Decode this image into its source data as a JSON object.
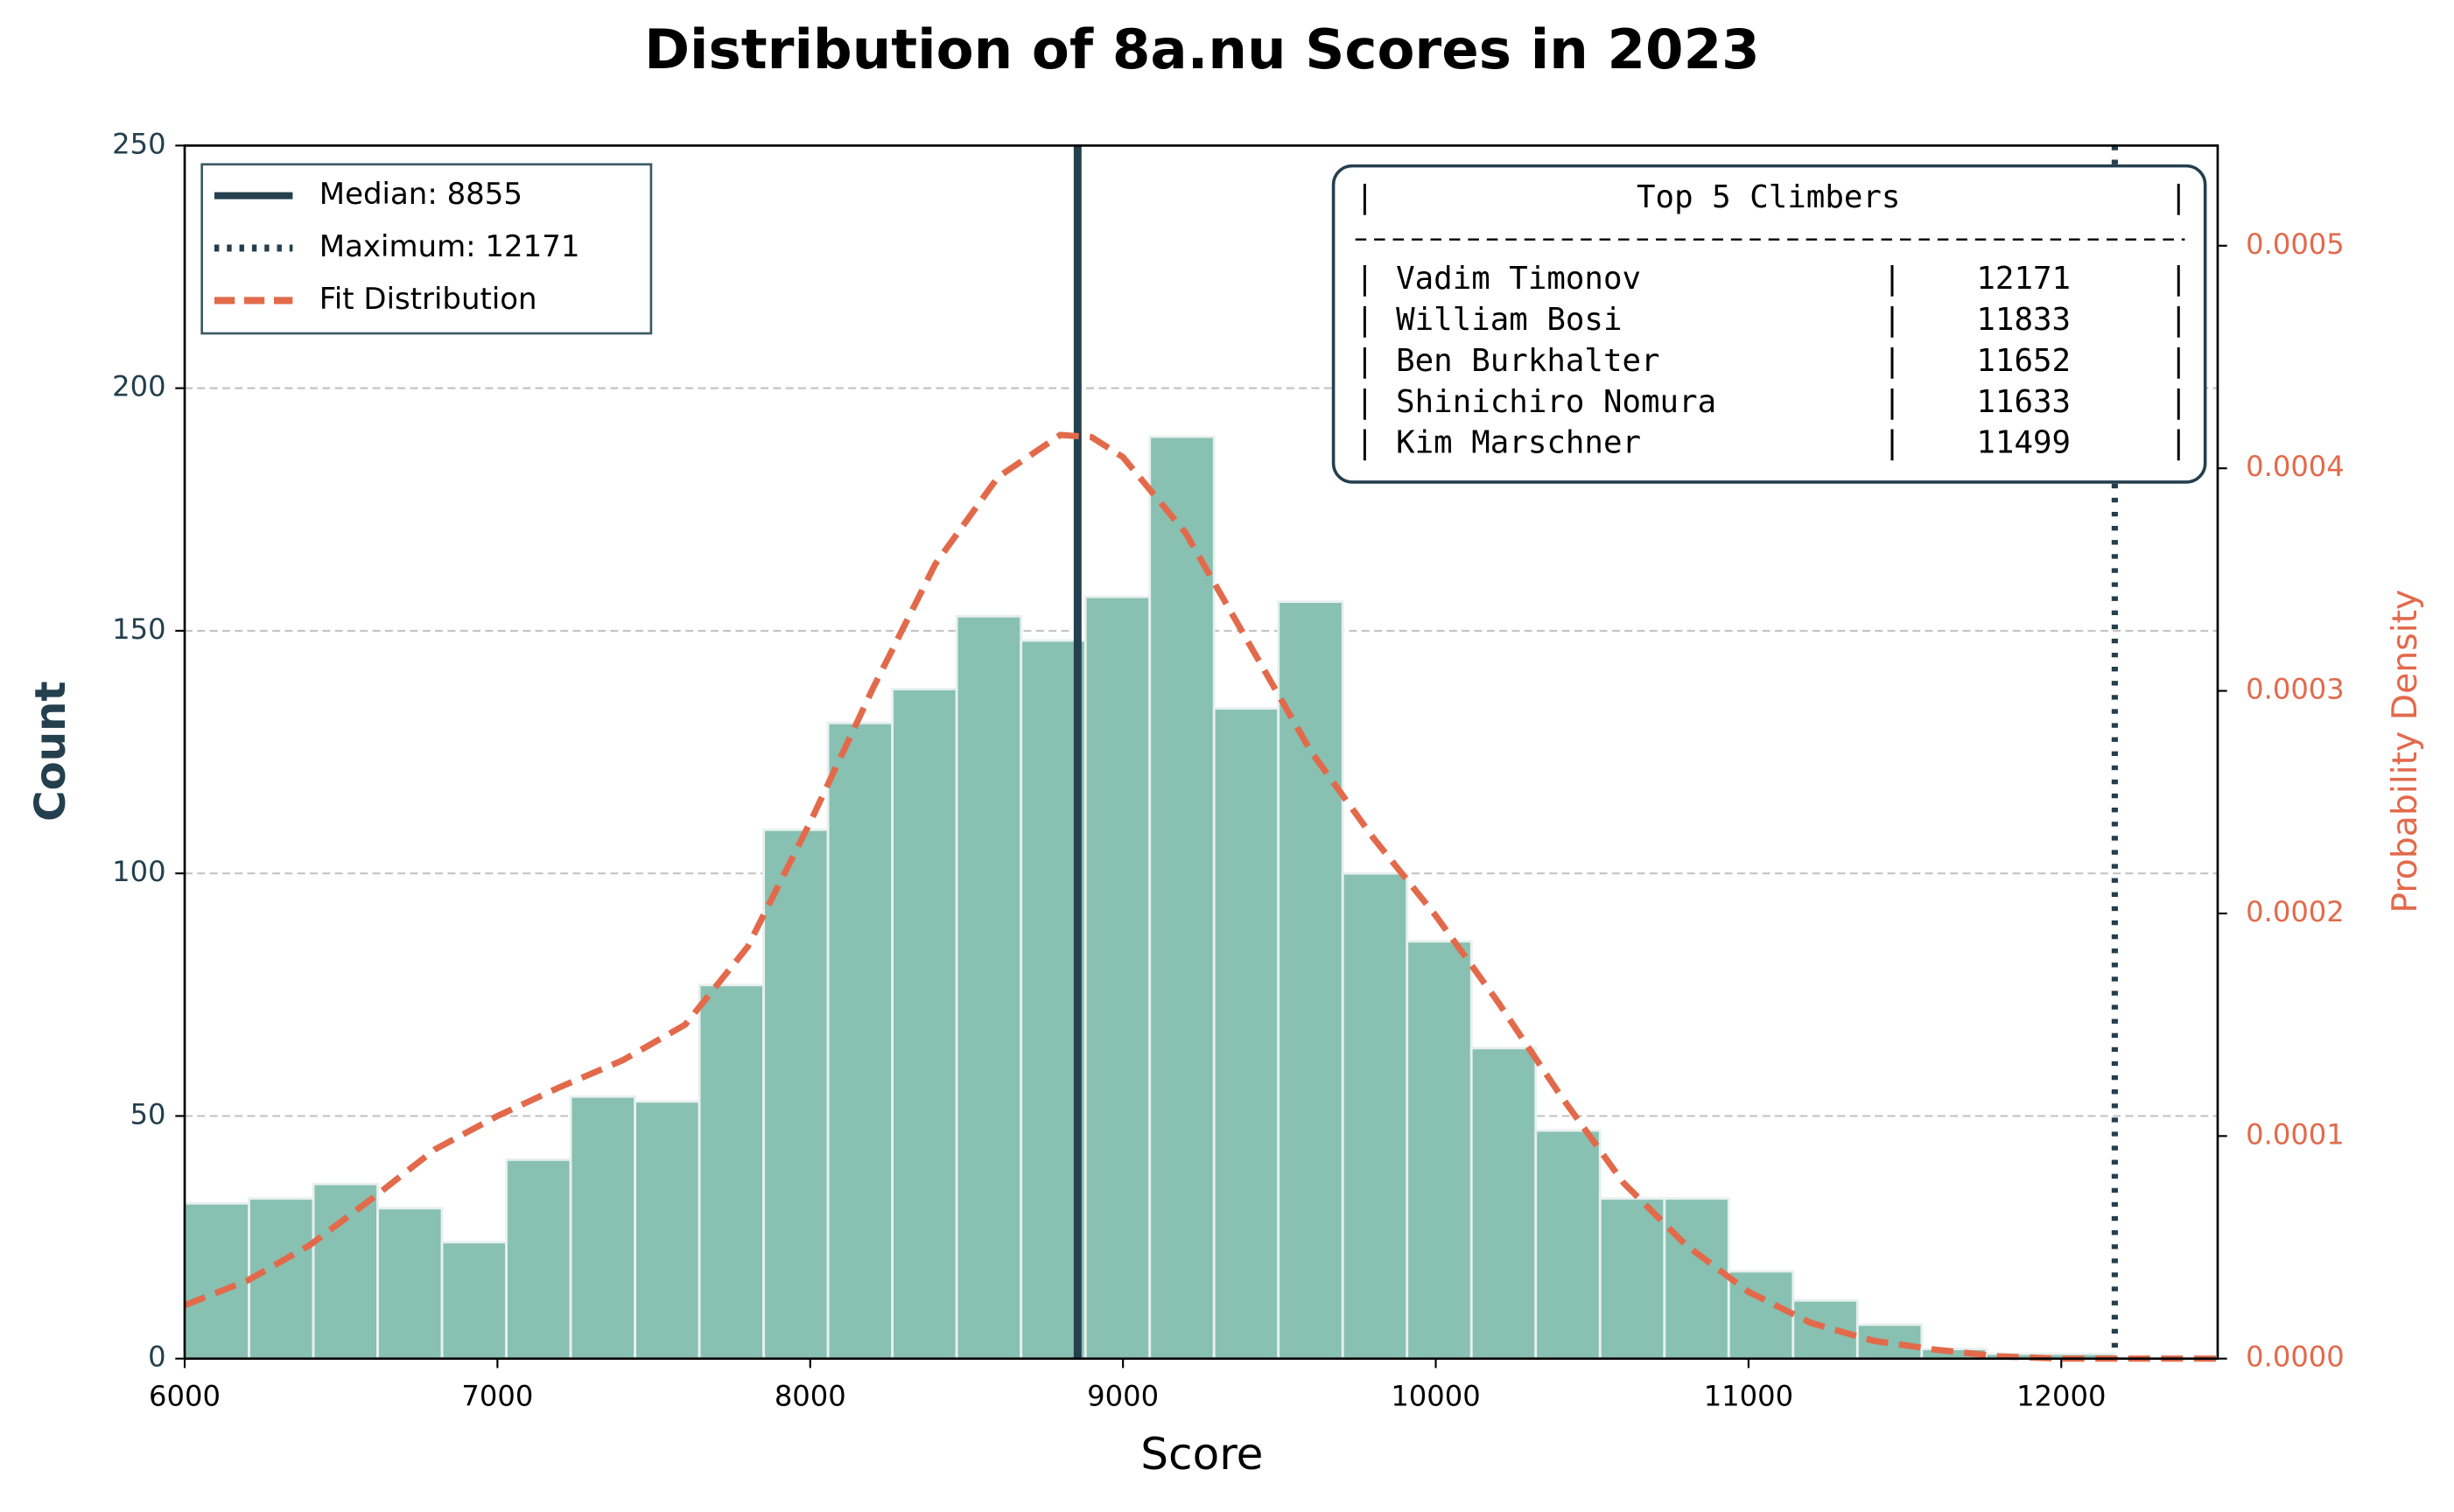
{
  "chart_data": {
    "type": "histogram",
    "title": "Distribution of 8a.nu Scores in 2023",
    "xlabel": "Score",
    "ylabel": "Count",
    "y2label": "Probability Density",
    "bins": [
      6000,
      6205.7,
      6411.4,
      6617.1,
      6822.8,
      7028.5,
      7234.2,
      7439.9,
      7645.6,
      7851.3,
      8057,
      8262.7,
      8468.4,
      8674.1,
      8879.8,
      9085.5,
      9291.2,
      9496.9,
      9702.6,
      9908.3,
      10114,
      10319.7,
      10525.4,
      10731.1,
      10936.8,
      11142.5,
      11348.2,
      11553.9,
      11759.6,
      11965.3,
      12171
    ],
    "values": [
      32,
      33,
      36,
      31,
      24,
      41,
      54,
      53,
      77,
      109,
      131,
      138,
      153,
      148,
      157,
      190,
      134,
      156,
      100,
      86,
      64,
      47,
      33,
      33,
      18,
      12,
      7,
      2,
      1,
      1
    ],
    "color": "#88c0b2",
    "xlim": [
      6000,
      12500
    ],
    "xticks": [
      6000,
      7000,
      8000,
      9000,
      10000,
      11000,
      12000
    ],
    "ylim": [
      0,
      250
    ],
    "yticks": [
      0,
      50,
      100,
      150,
      200,
      250
    ],
    "y2lim": [
      0,
      0.000545
    ],
    "y2ticks": [
      {
        "value": 0,
        "label": "0.0000"
      },
      0.0001,
      0.0002,
      0.0003,
      0.0004,
      0.0005
    ],
    "grid": true,
    "legend": "upper left",
    "lines": [
      {
        "name": "Median: 8855",
        "value": 8855,
        "color": "#243f4e",
        "style": "solid"
      },
      {
        "name": "Maximum: 12171",
        "value": 12171,
        "color": "#243f4e",
        "style": "dotted"
      }
    ],
    "fit": {
      "name": "Fit Distribution",
      "color": "#e26a4b",
      "style": "dashed",
      "axis": "y2",
      "x": [
        6000,
        6200,
        6400,
        6600,
        6800,
        7000,
        7200,
        7400,
        7600,
        7800,
        8000,
        8200,
        8400,
        8600,
        8800,
        8900,
        9000,
        9200,
        9400,
        9600,
        9800,
        10000,
        10200,
        10400,
        10600,
        10800,
        11000,
        11200,
        11400,
        11600,
        11800,
        12000,
        12500
      ],
      "values": [
        2.4e-05,
        3.5e-05,
        5.1e-05,
        7.2e-05,
        9.4e-05,
        0.000109,
        0.000122,
        0.000134,
        0.00015,
        0.000185,
        0.000241,
        0.000301,
        0.000357,
        0.000396,
        0.000415,
        0.000414,
        0.000405,
        0.000371,
        0.000322,
        0.000273,
        0.000234,
        0.000199,
        0.00016,
        0.000118,
        7.9e-05,
        5.1e-05,
        3e-05,
        1.6e-05,
        8e-06,
        4e-06,
        1e-06,
        0,
        0
      ]
    },
    "table": {
      "title": "Top 5 Climbers",
      "rows": [
        [
          "Vadim Timonov",
          12171
        ],
        [
          "William Bosi",
          11833
        ],
        [
          "Ben Burkhalter",
          11652
        ],
        [
          "Shinichiro Nomura",
          11633
        ],
        [
          "Kim Marschner",
          11499
        ]
      ]
    }
  }
}
